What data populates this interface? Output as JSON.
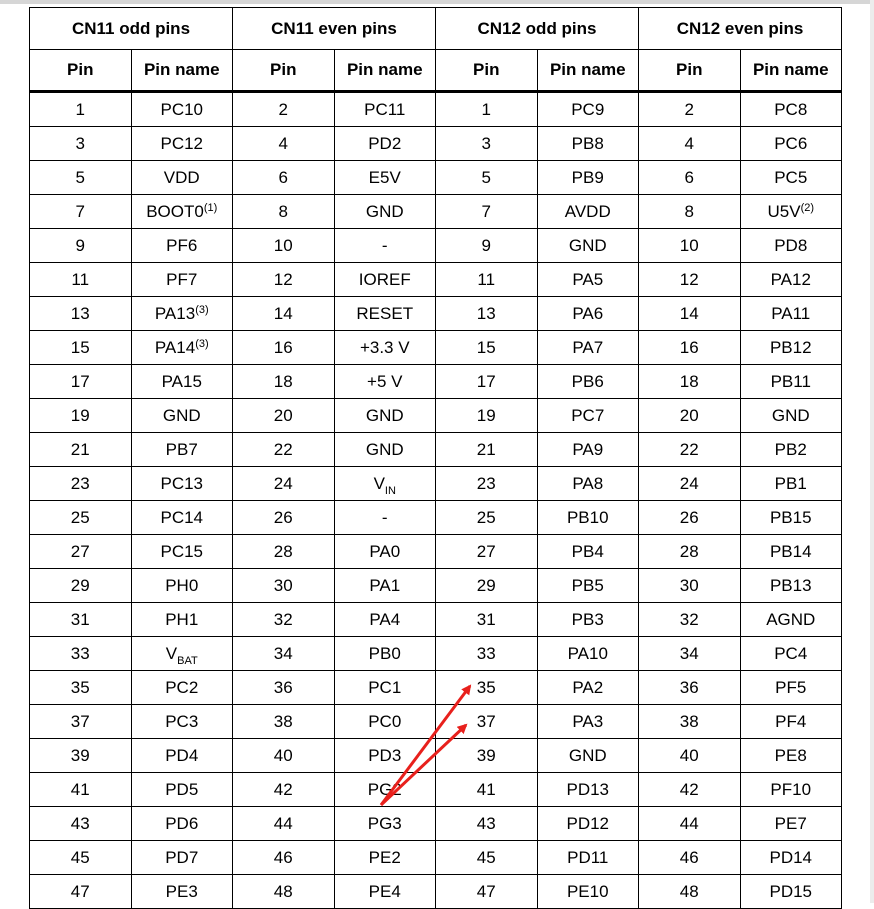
{
  "groups": [
    "CN11 odd pins",
    "CN11 even pins",
    "CN12 odd pins",
    "CN12 even pins"
  ],
  "subheaders": [
    "Pin",
    "Pin name",
    "Pin",
    "Pin name",
    "Pin",
    "Pin name",
    "Pin",
    "Pin name"
  ],
  "rows": [
    {
      "cells": [
        "1",
        "PC10",
        "2",
        "PC11",
        "1",
        "PC9",
        "2",
        "PC8"
      ]
    },
    {
      "cells": [
        "3",
        "PC12",
        "4",
        "PD2",
        "3",
        "PB8",
        "4",
        "PC6"
      ]
    },
    {
      "cells": [
        "5",
        "VDD",
        "6",
        "E5V",
        "5",
        "PB9",
        "6",
        "PC5"
      ]
    },
    {
      "cells": [
        "7",
        "BOOT0",
        "8",
        "GND",
        "7",
        "AVDD",
        "8",
        "U5V"
      ],
      "sup": {
        "1": "(1)",
        "7": "(2)"
      }
    },
    {
      "cells": [
        "9",
        "PF6",
        "10",
        "-",
        "9",
        "GND",
        "10",
        "PD8"
      ]
    },
    {
      "cells": [
        "11",
        "PF7",
        "12",
        "IOREF",
        "11",
        "PA5",
        "12",
        "PA12"
      ]
    },
    {
      "cells": [
        "13",
        "PA13",
        "14",
        "RESET",
        "13",
        "PA6",
        "14",
        "PA11"
      ],
      "sup": {
        "1": "(3)"
      }
    },
    {
      "cells": [
        "15",
        "PA14",
        "16",
        "+3.3 V",
        "15",
        "PA7",
        "16",
        "PB12"
      ],
      "sup": {
        "1": "(3)"
      }
    },
    {
      "cells": [
        "17",
        "PA15",
        "18",
        "+5 V",
        "17",
        "PB6",
        "18",
        "PB11"
      ]
    },
    {
      "cells": [
        "19",
        "GND",
        "20",
        "GND",
        "19",
        "PC7",
        "20",
        "GND"
      ]
    },
    {
      "cells": [
        "21",
        "PB7",
        "22",
        "GND",
        "21",
        "PA9",
        "22",
        "PB2"
      ]
    },
    {
      "cells": [
        "23",
        "PC13",
        "24",
        "V",
        "23",
        "PA8",
        "24",
        "PB1"
      ],
      "sub": {
        "3": "IN"
      }
    },
    {
      "cells": [
        "25",
        "PC14",
        "26",
        "-",
        "25",
        "PB10",
        "26",
        "PB15"
      ]
    },
    {
      "cells": [
        "27",
        "PC15",
        "28",
        "PA0",
        "27",
        "PB4",
        "28",
        "PB14"
      ]
    },
    {
      "cells": [
        "29",
        "PH0",
        "30",
        "PA1",
        "29",
        "PB5",
        "30",
        "PB13"
      ]
    },
    {
      "cells": [
        "31",
        "PH1",
        "32",
        "PA4",
        "31",
        "PB3",
        "32",
        "AGND"
      ]
    },
    {
      "cells": [
        "33",
        "V",
        "34",
        "PB0",
        "33",
        "PA10",
        "34",
        "PC4"
      ],
      "sub": {
        "1": "BAT"
      }
    },
    {
      "cells": [
        "35",
        "PC2",
        "36",
        "PC1",
        "35",
        "PA2",
        "36",
        "PF5"
      ]
    },
    {
      "cells": [
        "37",
        "PC3",
        "38",
        "PC0",
        "37",
        "PA3",
        "38",
        "PF4"
      ]
    },
    {
      "cells": [
        "39",
        "PD4",
        "40",
        "PD3",
        "39",
        "GND",
        "40",
        "PE8"
      ]
    },
    {
      "cells": [
        "41",
        "PD5",
        "42",
        "PG2",
        "41",
        "PD13",
        "42",
        "PF10"
      ]
    },
    {
      "cells": [
        "43",
        "PD6",
        "44",
        "PG3",
        "43",
        "PD12",
        "44",
        "PE7"
      ]
    },
    {
      "cells": [
        "45",
        "PD7",
        "46",
        "PE2",
        "45",
        "PD11",
        "46",
        "PD14"
      ]
    },
    {
      "cells": [
        "47",
        "PE3",
        "48",
        "PE4",
        "47",
        "PE10",
        "48",
        "PD15"
      ]
    }
  ],
  "annotation": {
    "arrow_color": "#e8201c"
  }
}
